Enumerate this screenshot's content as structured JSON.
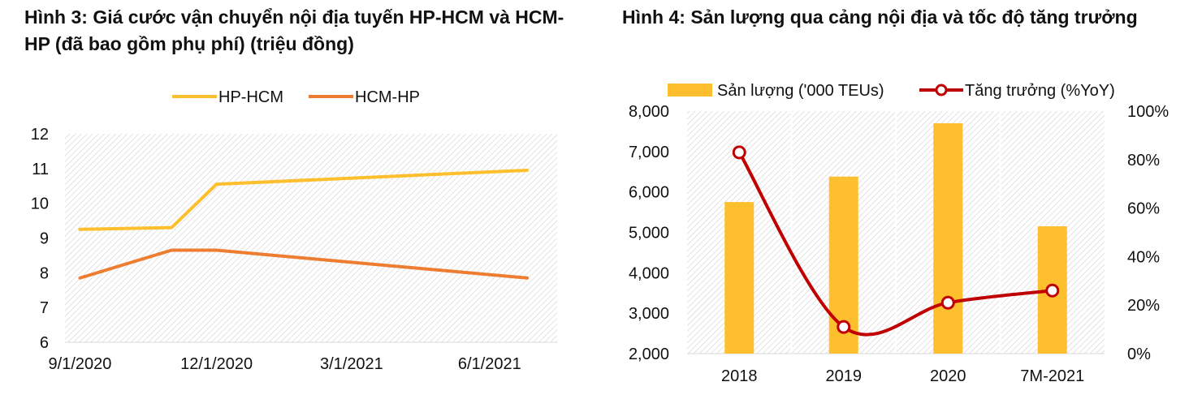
{
  "titles": {
    "left": "Hình 3: Giá cước vận chuyển nội địa tuyến HP-HCM và HCM-HP (đã bao gồm phụ phí) (triệu đồng)",
    "right": "Hình 4: Sản lượng qua cảng nội địa và tốc độ tăng trưởng"
  },
  "chart_data": [
    {
      "type": "line",
      "title": "Hình 3: Giá cước vận chuyển nội địa tuyến HP-HCM và HCM-HP (đã bao gồm phụ phí) (triệu đồng)",
      "x": [
        "9/1/2020",
        "11/1/2020",
        "12/1/2020",
        "6/26/2021"
      ],
      "x_axis_dates_days": [
        0,
        61,
        91,
        298
      ],
      "x_tick_labels": [
        "9/1/2020",
        "12/1/2020",
        "3/1/2021",
        "6/1/2021"
      ],
      "x_tick_days": [
        0,
        91,
        181,
        273
      ],
      "xlim_days": [
        -10,
        318
      ],
      "series": [
        {
          "name": "HP-HCM",
          "color": "#FDBF2D",
          "values": [
            9.25,
            9.3,
            10.55,
            10.95
          ]
        },
        {
          "name": "HCM-HP",
          "color": "#ED7D31",
          "values": [
            7.85,
            8.65,
            8.65,
            7.85
          ]
        }
      ],
      "ylim": [
        6,
        12
      ],
      "y_ticks": [
        6,
        7,
        8,
        9,
        10,
        11,
        12
      ],
      "grid": false,
      "background": "hatched",
      "legend": "top-center"
    },
    {
      "type": "bar",
      "title": "Hình 4: Sản lượng qua cảng nội địa và tốc độ tăng trưởng",
      "categories": [
        "2018",
        "2019",
        "2020",
        "7M-2021"
      ],
      "series": [
        {
          "name": "Sản lượng ('000 TEUs)",
          "type": "bar",
          "axis": "left",
          "color": "#FDBF2D",
          "values": [
            5750,
            6380,
            7700,
            5150
          ]
        },
        {
          "name": "Tăng trưởng (%YoY)",
          "type": "line",
          "axis": "right",
          "color": "#C00000",
          "values": [
            83,
            11,
            21,
            26
          ]
        }
      ],
      "ylim_left": [
        2000,
        8000
      ],
      "y_ticks_left": [
        "2,000",
        "3,000",
        "4,000",
        "5,000",
        "6,000",
        "7,000",
        "8,000"
      ],
      "ylim_right": [
        0,
        100
      ],
      "y_ticks_right": [
        "0%",
        "20%",
        "40%",
        "60%",
        "80%",
        "100%"
      ],
      "grid": "vertical",
      "background": "hatched",
      "legend": "top-center"
    }
  ]
}
